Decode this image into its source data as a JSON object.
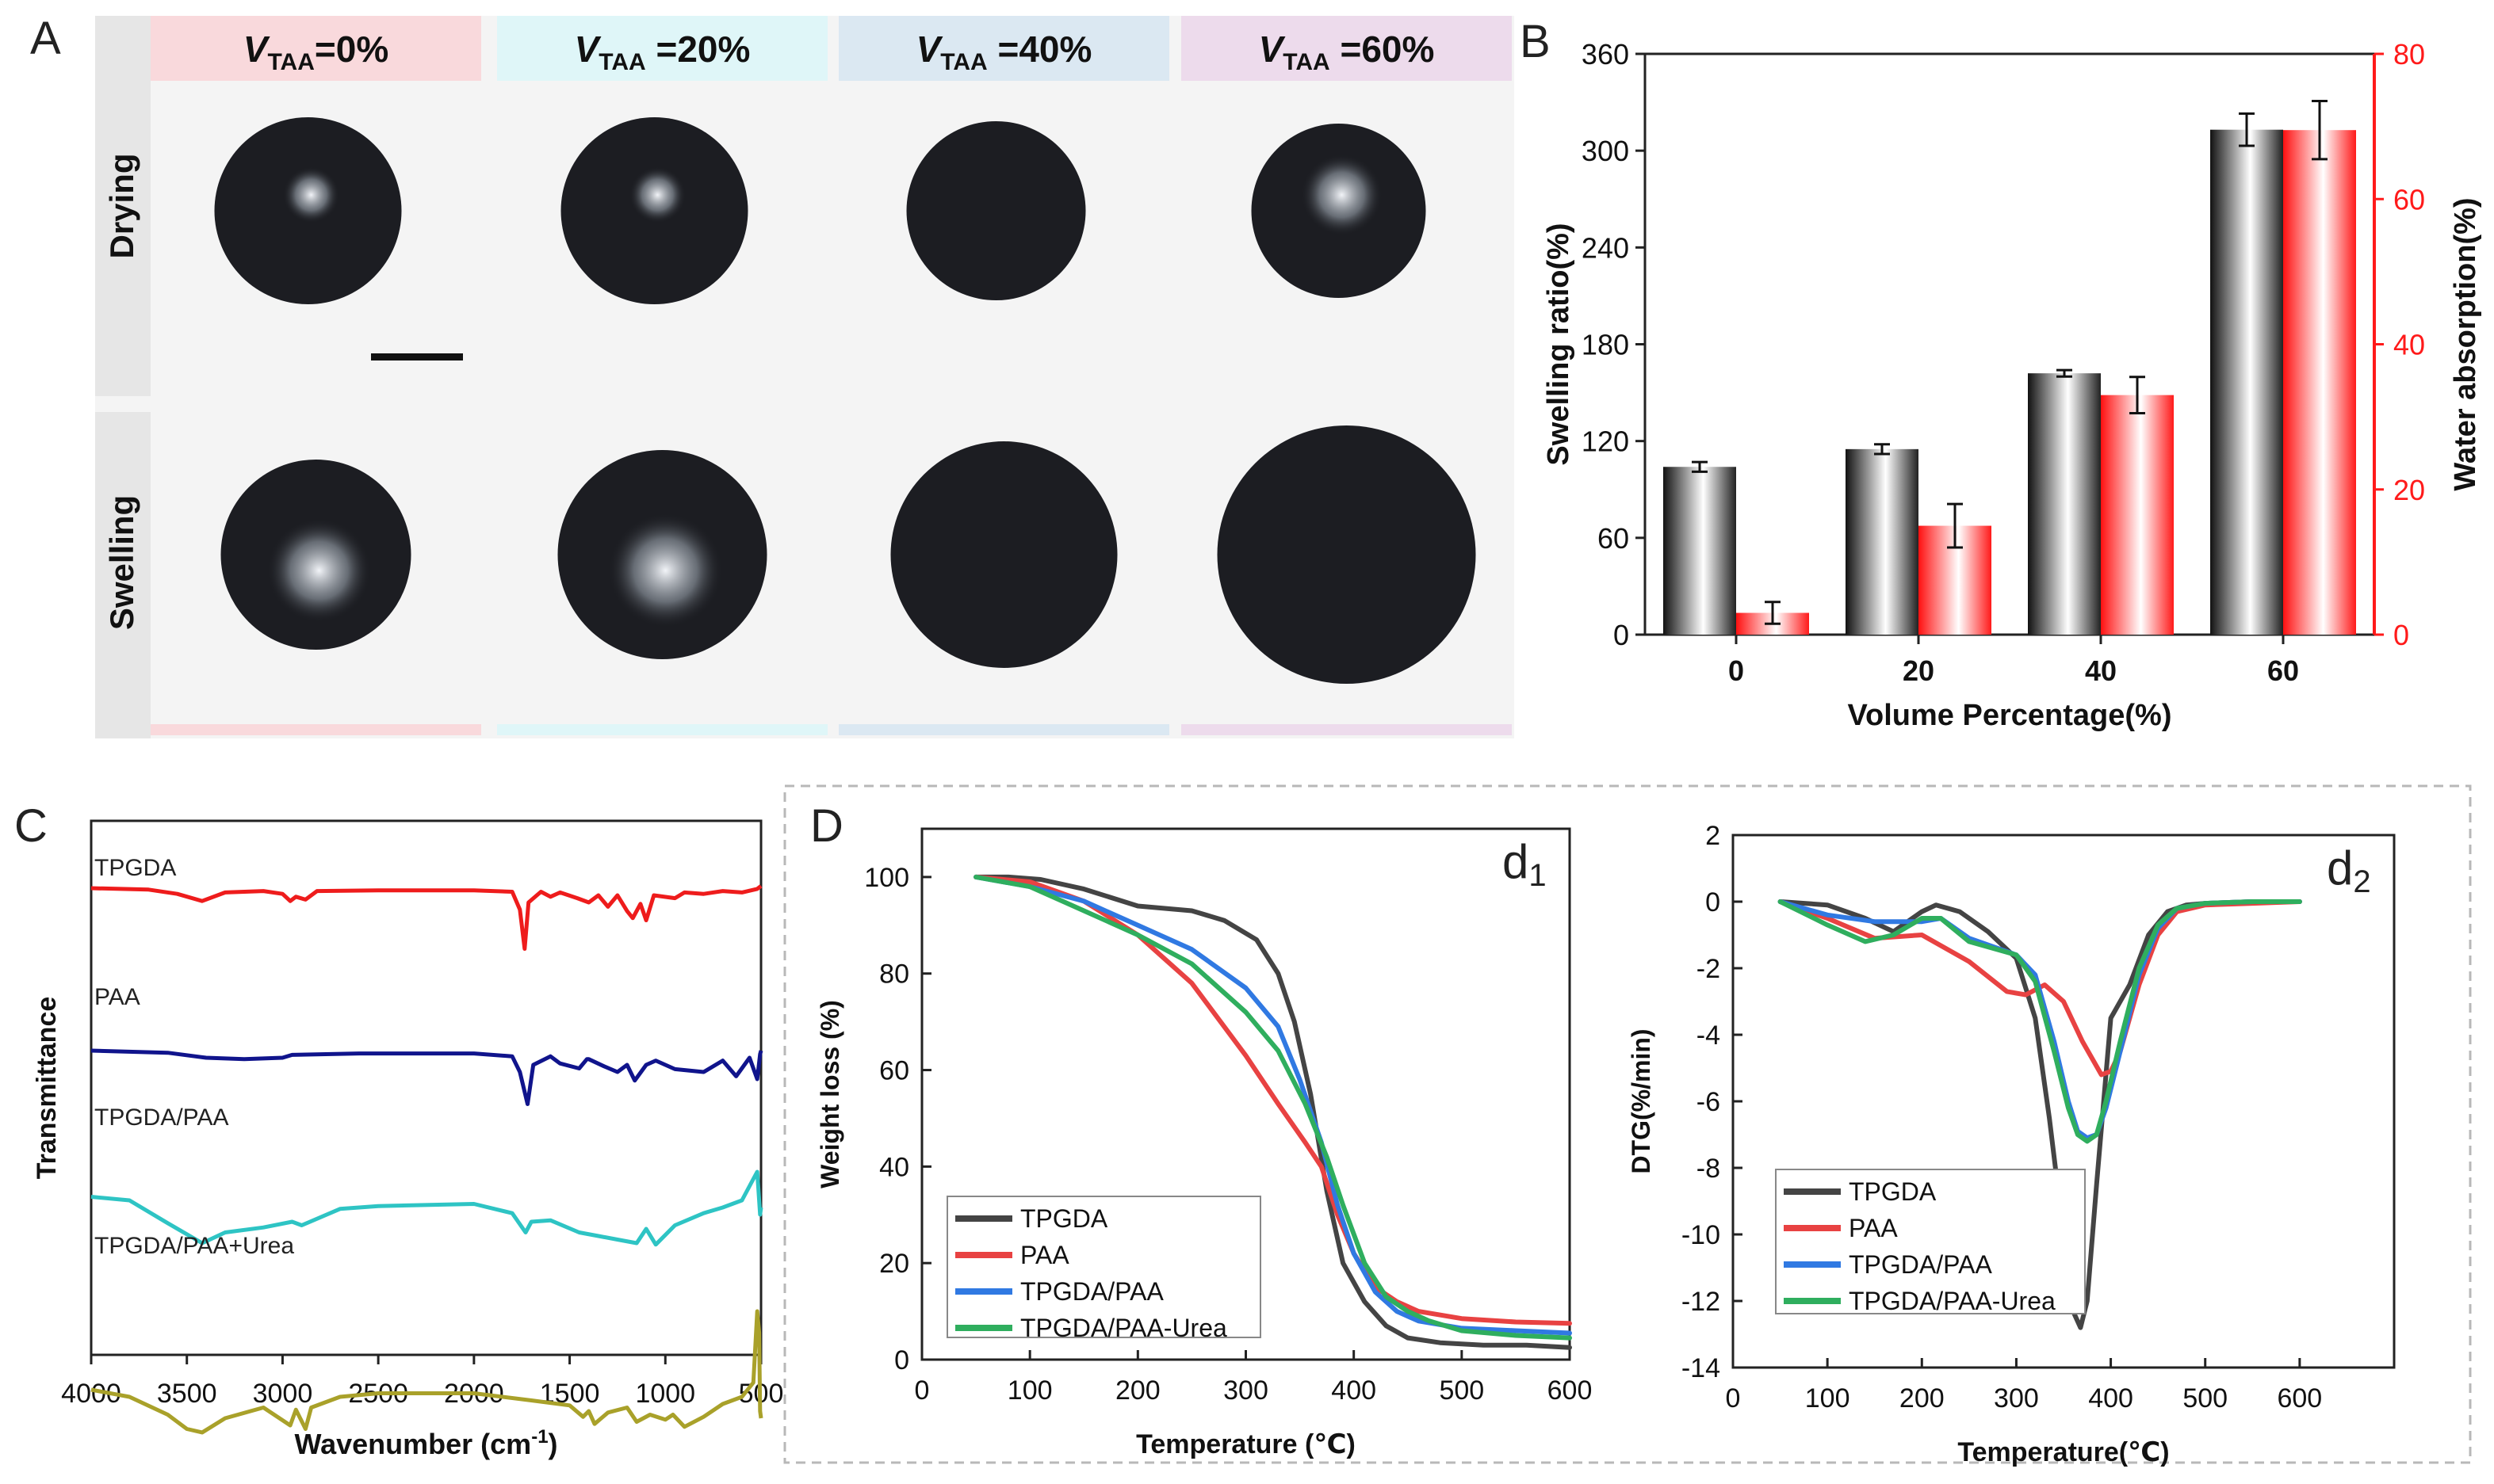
{
  "panel_letters": {
    "a": "A",
    "b": "B",
    "c": "C",
    "d": "D",
    "d1": "d",
    "d1_sub": "1",
    "d2": "d",
    "d2_sub": "2"
  },
  "panel_a": {
    "col_prefix": "V",
    "col_sub": "TAA",
    "columns": [
      "=0%",
      " =20%",
      " =40%",
      " =60%"
    ],
    "col_colors": [
      "#f9d9dc",
      "#dff6f8",
      "#dbe8f2",
      "#eddbec"
    ],
    "rows": [
      "Drying",
      "Swelling"
    ],
    "drop_highlight": [
      [
        0.55,
        0.55,
        0.0,
        0.85
      ],
      [
        1.0,
        1.0,
        0.0,
        0.0
      ]
    ]
  },
  "chart_data": [
    {
      "id": "B",
      "type": "bar",
      "categories": [
        "0",
        "20",
        "40",
        "60"
      ],
      "xlabel": "Volume Percentage(%)",
      "ylabel": "Swelling ratio(%)",
      "ylabel2": "Water absorption(%)",
      "ylim": [
        0,
        360
      ],
      "y2lim": [
        0,
        80
      ],
      "yticks": [
        "0",
        "60",
        "120",
        "180",
        "240",
        "300",
        "360"
      ],
      "y2ticks": [
        "0",
        "20",
        "40",
        "60",
        "80"
      ],
      "series": [
        {
          "name": "Swelling ratio",
          "axis": "left",
          "color": "#333333",
          "values": [
            104,
            115,
            162,
            313
          ],
          "errors": [
            3,
            3,
            2,
            10
          ]
        },
        {
          "name": "Water absorption",
          "axis": "right",
          "color": "#ff2020",
          "values": [
            3,
            15,
            33,
            69.5
          ],
          "errors": [
            1.5,
            3,
            2.5,
            4
          ]
        }
      ]
    },
    {
      "id": "C",
      "type": "line",
      "xlabel": "Wavenumber (cm",
      "xlabel_sup": "-1",
      "xlabel_end": ")",
      "ylabel": "Transmittance",
      "xlim": [
        4000,
        500
      ],
      "xticks": [
        "4000",
        "3500",
        "3000",
        "2500",
        "2000",
        "1500",
        "1000",
        "500"
      ],
      "series": [
        {
          "name": "TPGDA",
          "color": "#ee1c1c",
          "offset": 85,
          "points": [
            [
              4000,
              0
            ],
            [
              3700,
              -2
            ],
            [
              3550,
              -8
            ],
            [
              3420,
              -18
            ],
            [
              3300,
              -6
            ],
            [
              3100,
              -4
            ],
            [
              3000,
              -8
            ],
            [
              2960,
              -18
            ],
            [
              2930,
              -12
            ],
            [
              2880,
              -16
            ],
            [
              2820,
              -4
            ],
            [
              2500,
              -3
            ],
            [
              2000,
              -3
            ],
            [
              1800,
              -5
            ],
            [
              1760,
              -30
            ],
            [
              1735,
              -85
            ],
            [
              1715,
              -20
            ],
            [
              1650,
              -5
            ],
            [
              1600,
              -12
            ],
            [
              1550,
              -6
            ],
            [
              1460,
              -14
            ],
            [
              1400,
              -20
            ],
            [
              1350,
              -10
            ],
            [
              1300,
              -26
            ],
            [
              1250,
              -10
            ],
            [
              1200,
              -32
            ],
            [
              1170,
              -42
            ],
            [
              1130,
              -22
            ],
            [
              1100,
              -45
            ],
            [
              1060,
              -10
            ],
            [
              950,
              -14
            ],
            [
              900,
              -6
            ],
            [
              800,
              -8
            ],
            [
              700,
              -4
            ],
            [
              600,
              -6
            ],
            [
              520,
              -1
            ],
            [
              500,
              3
            ]
          ]
        },
        {
          "name": "PAA",
          "color": "#10148c",
          "offset": 290,
          "points": [
            [
              4000,
              0
            ],
            [
              3600,
              -3
            ],
            [
              3400,
              -10
            ],
            [
              3200,
              -12
            ],
            [
              3000,
              -10
            ],
            [
              2950,
              -6
            ],
            [
              2600,
              -4
            ],
            [
              2000,
              -4
            ],
            [
              1800,
              -8
            ],
            [
              1760,
              -30
            ],
            [
              1720,
              -75
            ],
            [
              1690,
              -20
            ],
            [
              1600,
              -8
            ],
            [
              1550,
              -18
            ],
            [
              1450,
              -25
            ],
            [
              1410,
              -12
            ],
            [
              1400,
              -12
            ],
            [
              1320,
              -22
            ],
            [
              1250,
              -30
            ],
            [
              1200,
              -20
            ],
            [
              1160,
              -42
            ],
            [
              1100,
              -20
            ],
            [
              1050,
              -14
            ],
            [
              950,
              -26
            ],
            [
              800,
              -30
            ],
            [
              700,
              -14
            ],
            [
              630,
              -36
            ],
            [
              560,
              -10
            ],
            [
              520,
              -40
            ],
            [
              505,
              -5
            ],
            [
              500,
              0
            ]
          ]
        },
        {
          "name": "TPGDA/PAA",
          "color": "#2ec4c4",
          "offset": 470,
          "points": [
            [
              4000,
              -5
            ],
            [
              3800,
              -10
            ],
            [
              3600,
              -42
            ],
            [
              3420,
              -70
            ],
            [
              3300,
              -55
            ],
            [
              3100,
              -48
            ],
            [
              2950,
              -40
            ],
            [
              2900,
              -45
            ],
            [
              2700,
              -22
            ],
            [
              2500,
              -18
            ],
            [
              2000,
              -15
            ],
            [
              1800,
              -28
            ],
            [
              1730,
              -55
            ],
            [
              1700,
              -40
            ],
            [
              1600,
              -38
            ],
            [
              1450,
              -55
            ],
            [
              1350,
              -60
            ],
            [
              1250,
              -65
            ],
            [
              1150,
              -70
            ],
            [
              1100,
              -50
            ],
            [
              1050,
              -72
            ],
            [
              950,
              -45
            ],
            [
              800,
              -28
            ],
            [
              700,
              -20
            ],
            [
              600,
              -10
            ],
            [
              540,
              20
            ],
            [
              520,
              30
            ],
            [
              505,
              -30
            ],
            [
              500,
              -20
            ]
          ]
        },
        {
          "name": "TPGDA/PAA+Urea",
          "color": "#a9a12a",
          "offset": 700,
          "points": [
            [
              4000,
              -20
            ],
            [
              3800,
              -30
            ],
            [
              3600,
              -55
            ],
            [
              3500,
              -75
            ],
            [
              3420,
              -80
            ],
            [
              3300,
              -60
            ],
            [
              3100,
              -45
            ],
            [
              2960,
              -70
            ],
            [
              2930,
              -48
            ],
            [
              2880,
              -75
            ],
            [
              2850,
              -45
            ],
            [
              2700,
              -30
            ],
            [
              2500,
              -25
            ],
            [
              2000,
              -25
            ],
            [
              1700,
              -35
            ],
            [
              1500,
              -42
            ],
            [
              1430,
              -58
            ],
            [
              1400,
              -50
            ],
            [
              1370,
              -68
            ],
            [
              1300,
              -52
            ],
            [
              1200,
              -45
            ],
            [
              1150,
              -65
            ],
            [
              1080,
              -55
            ],
            [
              1000,
              -62
            ],
            [
              960,
              -55
            ],
            [
              900,
              -72
            ],
            [
              800,
              -58
            ],
            [
              700,
              -40
            ],
            [
              600,
              -30
            ],
            [
              540,
              -10
            ],
            [
              520,
              90
            ],
            [
              510,
              60
            ],
            [
              505,
              -50
            ],
            [
              500,
              -60
            ]
          ]
        }
      ]
    },
    {
      "id": "d1",
      "type": "line",
      "xlabel": "Temperature (℃)",
      "ylabel": "Weight loss (%)",
      "xlim": [
        0,
        600
      ],
      "ylim": [
        0,
        110
      ],
      "xticks": [
        "0",
        "100",
        "200",
        "300",
        "400",
        "500",
        "600"
      ],
      "yticks": [
        "0",
        "20",
        "40",
        "60",
        "80",
        "100"
      ],
      "legend_position": "bottom-left",
      "series": [
        {
          "name": "TPGDA",
          "color": "#444444",
          "x": [
            50,
            80,
            110,
            150,
            200,
            250,
            280,
            310,
            330,
            345,
            360,
            375,
            390,
            410,
            430,
            450,
            480,
            520,
            560,
            600
          ],
          "y": [
            100,
            100,
            99.5,
            97.5,
            94,
            93,
            91,
            87,
            80,
            70,
            55,
            35,
            20,
            12,
            7,
            4.5,
            3.5,
            3,
            3,
            2.5
          ]
        },
        {
          "name": "PAA",
          "color": "#e84242",
          "x": [
            50,
            100,
            150,
            200,
            250,
            300,
            330,
            355,
            370,
            385,
            400,
            420,
            440,
            460,
            500,
            550,
            600
          ],
          "y": [
            100,
            99,
            95,
            88,
            78,
            63,
            53,
            45,
            40,
            30,
            22,
            15,
            12,
            10,
            8.5,
            7.8,
            7.5
          ]
        },
        {
          "name": "TPGDA/PAA",
          "color": "#3079e2",
          "x": [
            50,
            100,
            150,
            200,
            250,
            300,
            330,
            350,
            370,
            385,
            400,
            420,
            440,
            460,
            500,
            550,
            600
          ],
          "y": [
            100,
            98,
            95,
            90,
            85,
            77,
            69,
            58,
            45,
            32,
            22,
            14,
            10,
            8,
            6.5,
            6,
            5.5
          ]
        },
        {
          "name": "TPGDA/PAA-Urea",
          "color": "#2fae5e",
          "x": [
            50,
            100,
            150,
            200,
            250,
            300,
            330,
            355,
            375,
            390,
            410,
            430,
            450,
            470,
            500,
            550,
            600
          ],
          "y": [
            100,
            98,
            93,
            88,
            82,
            72,
            64,
            53,
            42,
            32,
            20,
            13,
            10,
            8,
            6,
            5,
            4.5
          ]
        }
      ]
    },
    {
      "id": "d2",
      "type": "line",
      "xlabel": "Temperature(℃)",
      "ylabel": "DTG(%/min)",
      "xlim": [
        0,
        700
      ],
      "ylim": [
        -14,
        2
      ],
      "xticks": [
        "0",
        "100",
        "200",
        "300",
        "400",
        "500",
        "600"
      ],
      "yticks": [
        "-14",
        "-12",
        "-10",
        "-8",
        "-6",
        "-4",
        "-2",
        "0",
        "2"
      ],
      "legend_position": "bottom-left",
      "series": [
        {
          "name": "TPGDA",
          "color": "#444444",
          "x": [
            50,
            100,
            140,
            170,
            200,
            215,
            240,
            270,
            300,
            320,
            335,
            350,
            360,
            368,
            375,
            385,
            400,
            420,
            440,
            460,
            480,
            500,
            550,
            600
          ],
          "y": [
            0,
            -0.1,
            -0.5,
            -0.9,
            -0.3,
            -0.1,
            -0.3,
            -0.9,
            -1.7,
            -3.5,
            -6.5,
            -10,
            -12.3,
            -12.8,
            -12,
            -8.5,
            -3.5,
            -2.5,
            -1,
            -0.3,
            -0.1,
            -0.05,
            0,
            0
          ]
        },
        {
          "name": "PAA",
          "color": "#e84242",
          "x": [
            50,
            100,
            150,
            200,
            250,
            290,
            310,
            330,
            350,
            370,
            390,
            400,
            410,
            430,
            450,
            470,
            500,
            550,
            600
          ],
          "y": [
            0,
            -0.5,
            -1.1,
            -1,
            -1.8,
            -2.7,
            -2.8,
            -2.5,
            -3,
            -4.2,
            -5.2,
            -5.1,
            -4.5,
            -2.5,
            -1,
            -0.3,
            -0.1,
            -0.05,
            0
          ]
        },
        {
          "name": "TPGDA/PAA",
          "color": "#3079e2",
          "x": [
            50,
            100,
            150,
            200,
            220,
            250,
            300,
            320,
            340,
            355,
            365,
            375,
            385,
            395,
            410,
            430,
            450,
            470,
            500,
            550,
            600
          ],
          "y": [
            0,
            -0.4,
            -0.6,
            -0.6,
            -0.5,
            -1.1,
            -1.6,
            -2.2,
            -4.2,
            -6,
            -6.9,
            -7.1,
            -7,
            -6.2,
            -4.5,
            -2.2,
            -0.8,
            -0.2,
            -0.05,
            0,
            0
          ]
        },
        {
          "name": "TPGDA/PAA-Urea",
          "color": "#2fae5e",
          "x": [
            50,
            100,
            140,
            170,
            200,
            220,
            250,
            300,
            320,
            340,
            355,
            365,
            375,
            385,
            395,
            410,
            430,
            450,
            470,
            500,
            550,
            600
          ],
          "y": [
            0,
            -0.7,
            -1.2,
            -1,
            -0.5,
            -0.5,
            -1.2,
            -1.6,
            -2.4,
            -4.5,
            -6.2,
            -7,
            -7.2,
            -7,
            -6,
            -4.2,
            -2,
            -0.7,
            -0.2,
            -0.05,
            0,
            0
          ]
        }
      ]
    }
  ]
}
